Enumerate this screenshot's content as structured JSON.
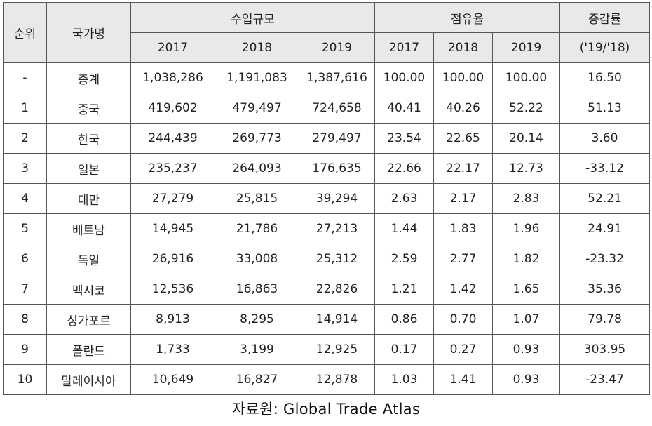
{
  "table": {
    "headers": {
      "rank": "순위",
      "country": "국가명",
      "import_scale": "수입규모",
      "share": "점유율",
      "change": "증감률",
      "change_sub": "('19/'18)",
      "years": [
        "2017",
        "2018",
        "2019"
      ]
    },
    "rows": [
      {
        "rank": "-",
        "country": "총계",
        "import": [
          "1,038,286",
          "1,191,083",
          "1,387,616"
        ],
        "share": [
          "100.00",
          "100.00",
          "100.00"
        ],
        "change": "16.50"
      },
      {
        "rank": "1",
        "country": "중국",
        "import": [
          "419,602",
          "479,497",
          "724,658"
        ],
        "share": [
          "40.41",
          "40.26",
          "52.22"
        ],
        "change": "51.13"
      },
      {
        "rank": "2",
        "country": "한국",
        "import": [
          "244,439",
          "269,773",
          "279,497"
        ],
        "share": [
          "23.54",
          "22.65",
          "20.14"
        ],
        "change": "3.60"
      },
      {
        "rank": "3",
        "country": "일본",
        "import": [
          "235,237",
          "264,093",
          "176,635"
        ],
        "share": [
          "22.66",
          "22.17",
          "12.73"
        ],
        "change": "-33.12"
      },
      {
        "rank": "4",
        "country": "대만",
        "import": [
          "27,279",
          "25,815",
          "39,294"
        ],
        "share": [
          "2.63",
          "2.17",
          "2.83"
        ],
        "change": "52.21"
      },
      {
        "rank": "5",
        "country": "베트남",
        "import": [
          "14,945",
          "21,786",
          "27,213"
        ],
        "share": [
          "1.44",
          "1.83",
          "1.96"
        ],
        "change": "24.91"
      },
      {
        "rank": "6",
        "country": "독일",
        "import": [
          "26,916",
          "33,008",
          "25,312"
        ],
        "share": [
          "2.59",
          "2.77",
          "1.82"
        ],
        "change": "-23.32"
      },
      {
        "rank": "7",
        "country": "멕시코",
        "import": [
          "12,536",
          "16,863",
          "22,826"
        ],
        "share": [
          "1.21",
          "1.42",
          "1.65"
        ],
        "change": "35.36"
      },
      {
        "rank": "8",
        "country": "싱가포르",
        "import": [
          "8,913",
          "8,295",
          "14,914"
        ],
        "share": [
          "0.86",
          "0.70",
          "1.07"
        ],
        "change": "79.78"
      },
      {
        "rank": "9",
        "country": "폴란드",
        "import": [
          "1,733",
          "3,199",
          "12,925"
        ],
        "share": [
          "0.17",
          "0.27",
          "0.93"
        ],
        "change": "303.95"
      },
      {
        "rank": "10",
        "country": "말레이시아",
        "import": [
          "10,649",
          "16,827",
          "12,878"
        ],
        "share": [
          "1.03",
          "1.41",
          "0.93"
        ],
        "change": "-23.47"
      }
    ]
  },
  "source": "자료원: Global Trade Atlas"
}
